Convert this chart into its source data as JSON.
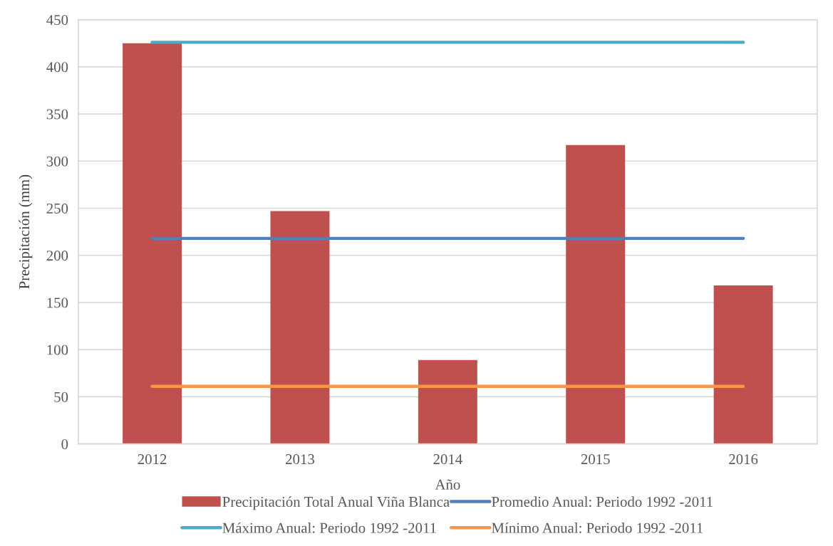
{
  "chart_data": {
    "type": "bar",
    "xlabel": "Año",
    "ylabel": "Precipitación (mm)",
    "categories": [
      "2012",
      "2013",
      "2014",
      "2015",
      "2016"
    ],
    "series": [
      {
        "name": "Precipitación Total Anual Viña Blanca",
        "color": "#c0504d",
        "values": [
          425,
          247,
          89,
          317,
          168
        ]
      },
      {
        "name": "Promedio Anual: Periodo 1992 -2011",
        "type": "line",
        "color": "#4f81bd",
        "values": [
          218,
          218,
          218,
          218,
          218
        ]
      },
      {
        "name": "Máximo Anual: Periodo 1992 -2011",
        "type": "line",
        "color": "#4bacc6",
        "values": [
          426,
          426,
          426,
          426,
          426
        ]
      },
      {
        "name": "Mínimo Anual: Periodo 1992 -2011",
        "type": "line",
        "color": "#f79646",
        "values": [
          61,
          61,
          61,
          61,
          61
        ]
      }
    ],
    "ylim": [
      0,
      450
    ],
    "yticks": [
      0,
      50,
      100,
      150,
      200,
      250,
      300,
      350,
      400,
      450
    ],
    "grid": "y",
    "legend": "bottom",
    "marker": "none",
    "line_style": "solid"
  }
}
